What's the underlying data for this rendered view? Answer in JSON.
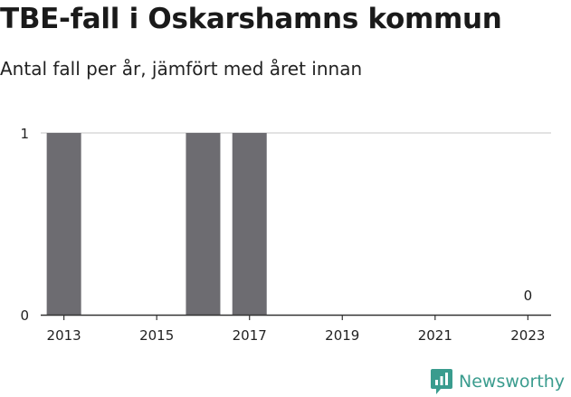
{
  "header": {
    "title": "TBE-fall i Oskarshamns kommun",
    "subtitle": "Antal fall per år, jämfört med året innan"
  },
  "chart_data": {
    "type": "bar",
    "x": [
      2013,
      2014,
      2015,
      2016,
      2017,
      2018,
      2019,
      2020,
      2021,
      2022,
      2023
    ],
    "values": [
      1,
      0,
      0,
      1,
      1,
      0,
      0,
      0,
      0,
      0,
      0
    ],
    "x_tick_labels": [
      "2013",
      "2015",
      "2017",
      "2019",
      "2021",
      "2023"
    ],
    "y_ticks": [
      0,
      1
    ],
    "ylim": [
      0,
      1
    ],
    "data_labels": [
      {
        "x": 2023,
        "text": "0"
      }
    ],
    "bar_color": "#6d6c71",
    "grid": true,
    "title": "TBE-fall i Oskarshamns kommun",
    "subtitle": "Antal fall per år, jämfört med året innan",
    "xlabel": "",
    "ylabel": ""
  },
  "brand": {
    "name": "Newsworthy",
    "icon": "newsworthy-logo-icon",
    "color": "#3a9c8e"
  }
}
